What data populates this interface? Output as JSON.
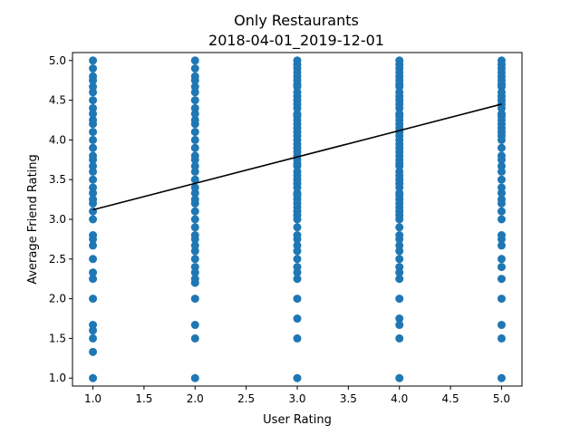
{
  "chart_data": {
    "type": "scatter",
    "title": "Only Restaurants",
    "subtitle": "2018-04-01_2019-12-01",
    "xlabel": "User Rating",
    "ylabel": "Average Friend Rating",
    "xlim": [
      0.8,
      5.2
    ],
    "ylim": [
      0.9,
      5.1
    ],
    "x_ticks": [
      "1.0",
      "1.5",
      "2.0",
      "2.5",
      "3.0",
      "3.5",
      "4.0",
      "4.5",
      "5.0"
    ],
    "y_ticks": [
      "1.0",
      "1.5",
      "2.0",
      "2.5",
      "3.0",
      "3.5",
      "4.0",
      "4.5",
      "5.0"
    ],
    "grid": false,
    "point_color": "#1f77b4",
    "line_color": "#000000",
    "series": [
      {
        "x": 1,
        "y": [
          1.0,
          1.33,
          1.5,
          1.6,
          1.67,
          2.0,
          2.25,
          2.33,
          2.5,
          2.67,
          2.75,
          2.8,
          3.0,
          3.1,
          3.2,
          3.25,
          3.33,
          3.4,
          3.5,
          3.6,
          3.67,
          3.75,
          3.8,
          3.9,
          4.0,
          4.1,
          4.2,
          4.25,
          4.33,
          4.4,
          4.5,
          4.6,
          4.67,
          4.75,
          4.8,
          4.9,
          5.0
        ]
      },
      {
        "x": 2,
        "y": [
          1.0,
          1.5,
          1.67,
          2.0,
          2.2,
          2.25,
          2.33,
          2.4,
          2.5,
          2.6,
          2.67,
          2.75,
          2.8,
          2.9,
          3.0,
          3.1,
          3.2,
          3.25,
          3.33,
          3.4,
          3.5,
          3.6,
          3.67,
          3.75,
          3.8,
          3.9,
          4.0,
          4.1,
          4.2,
          4.25,
          4.33,
          4.4,
          4.5,
          4.6,
          4.67,
          4.75,
          4.8,
          4.9,
          5.0
        ]
      },
      {
        "x": 3,
        "y": [
          1.0,
          1.5,
          1.75,
          2.0,
          2.25,
          2.33,
          2.4,
          2.5,
          2.6,
          2.67,
          2.75,
          2.8,
          2.9,
          3.0,
          3.05,
          3.1,
          3.15,
          3.2,
          3.25,
          3.3,
          3.33,
          3.4,
          3.45,
          3.5,
          3.55,
          3.6,
          3.67,
          3.7,
          3.75,
          3.8,
          3.85,
          3.9,
          3.95,
          4.0,
          4.05,
          4.1,
          4.15,
          4.2,
          4.25,
          4.3,
          4.33,
          4.4,
          4.45,
          4.5,
          4.55,
          4.6,
          4.67,
          4.7,
          4.75,
          4.8,
          4.85,
          4.9,
          4.95,
          5.0
        ]
      },
      {
        "x": 4,
        "y": [
          1.0,
          1.5,
          1.67,
          1.75,
          2.0,
          2.25,
          2.33,
          2.4,
          2.5,
          2.6,
          2.67,
          2.75,
          2.8,
          2.9,
          3.0,
          3.05,
          3.1,
          3.15,
          3.2,
          3.25,
          3.3,
          3.33,
          3.4,
          3.45,
          3.5,
          3.55,
          3.6,
          3.67,
          3.7,
          3.75,
          3.8,
          3.85,
          3.9,
          3.95,
          4.0,
          4.05,
          4.1,
          4.15,
          4.2,
          4.25,
          4.3,
          4.33,
          4.4,
          4.45,
          4.5,
          4.55,
          4.6,
          4.67,
          4.7,
          4.75,
          4.8,
          4.85,
          4.9,
          4.95,
          5.0
        ]
      },
      {
        "x": 5,
        "y": [
          1.0,
          1.5,
          1.67,
          2.0,
          2.25,
          2.4,
          2.5,
          2.67,
          2.75,
          2.8,
          3.0,
          3.1,
          3.2,
          3.25,
          3.33,
          3.4,
          3.5,
          3.6,
          3.67,
          3.75,
          3.8,
          3.9,
          4.0,
          4.05,
          4.1,
          4.15,
          4.2,
          4.25,
          4.3,
          4.33,
          4.4,
          4.45,
          4.5,
          4.55,
          4.6,
          4.67,
          4.7,
          4.75,
          4.8,
          4.85,
          4.9,
          4.95,
          5.0
        ]
      }
    ],
    "trend_line": {
      "x": [
        1,
        5
      ],
      "y": [
        3.12,
        4.45
      ]
    }
  }
}
